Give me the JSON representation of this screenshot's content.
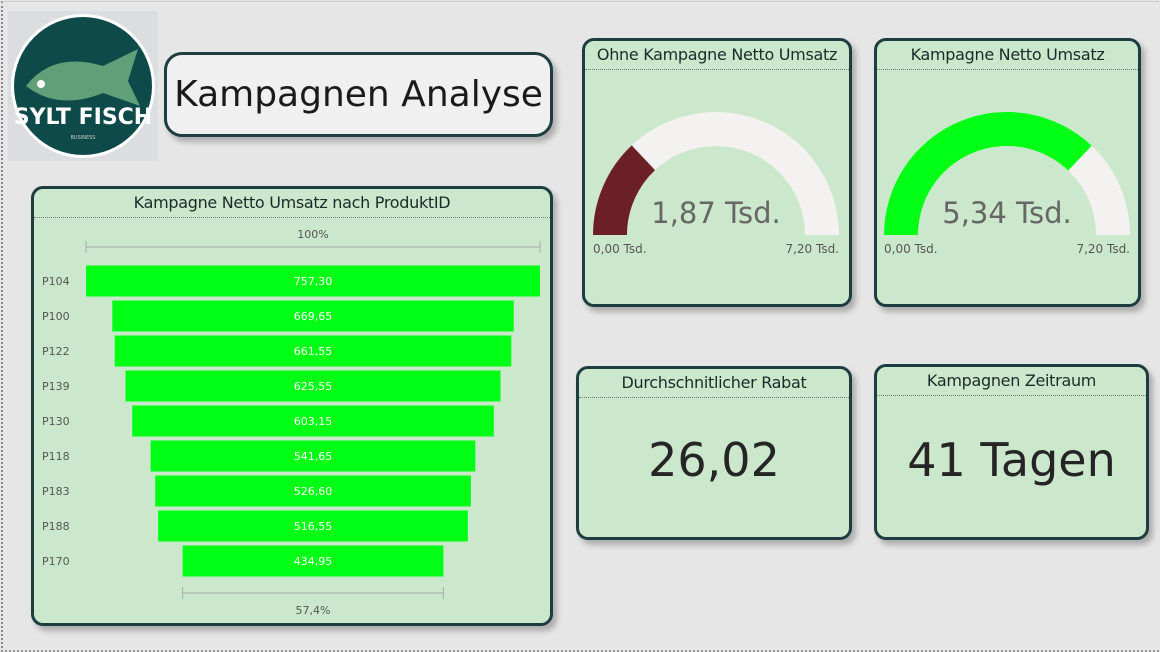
{
  "logo": {
    "text": "SYLT FISCH",
    "subtext": "BUSINESS"
  },
  "header": {
    "title": "Kampagnen Analyse"
  },
  "funnel": {
    "title": "Kampagne Netto Umsatz nach ProduktID",
    "top_pct": "100%",
    "bottom_pct": "57,4%"
  },
  "gauges": [
    {
      "title": "Ohne Kampagne Netto Umsatz",
      "value": 1.87,
      "max": 7.2,
      "value_label": "1,87 Tsd.",
      "min_label": "0,00 Tsd.",
      "max_label": "7,20 Tsd.",
      "color": "#6b2026"
    },
    {
      "title": "Kampagne Netto Umsatz",
      "value": 5.34,
      "max": 7.2,
      "value_label": "5,34 Tsd.",
      "min_label": "0,00 Tsd.",
      "max_label": "7,20 Tsd.",
      "color": "#00ff14"
    }
  ],
  "cards": [
    {
      "title": "Durchschnitlicher Rabat",
      "value": "26,02"
    },
    {
      "title": "Kampagnen Zeitraum",
      "value": "41 Tagen"
    }
  ],
  "colors": {
    "bar": "#00ff14",
    "card_bg": "#cce8cc",
    "border": "#1d3d40",
    "gauge_track": "#f3f2f1"
  },
  "chart_data": {
    "type": "funnel",
    "title": "Kampagne Netto Umsatz nach ProduktID",
    "categories": [
      "P104",
      "P100",
      "P122",
      "P139",
      "P130",
      "P118",
      "P183",
      "P188",
      "P170"
    ],
    "values": [
      757.3,
      669.65,
      661.55,
      625.55,
      603.15,
      541.65,
      526.6,
      516.55,
      434.95
    ],
    "labels": [
      "757,30",
      "669,65",
      "661,55",
      "625,55",
      "603,15",
      "541,65",
      "526,60",
      "516,55",
      "434,95"
    ]
  }
}
